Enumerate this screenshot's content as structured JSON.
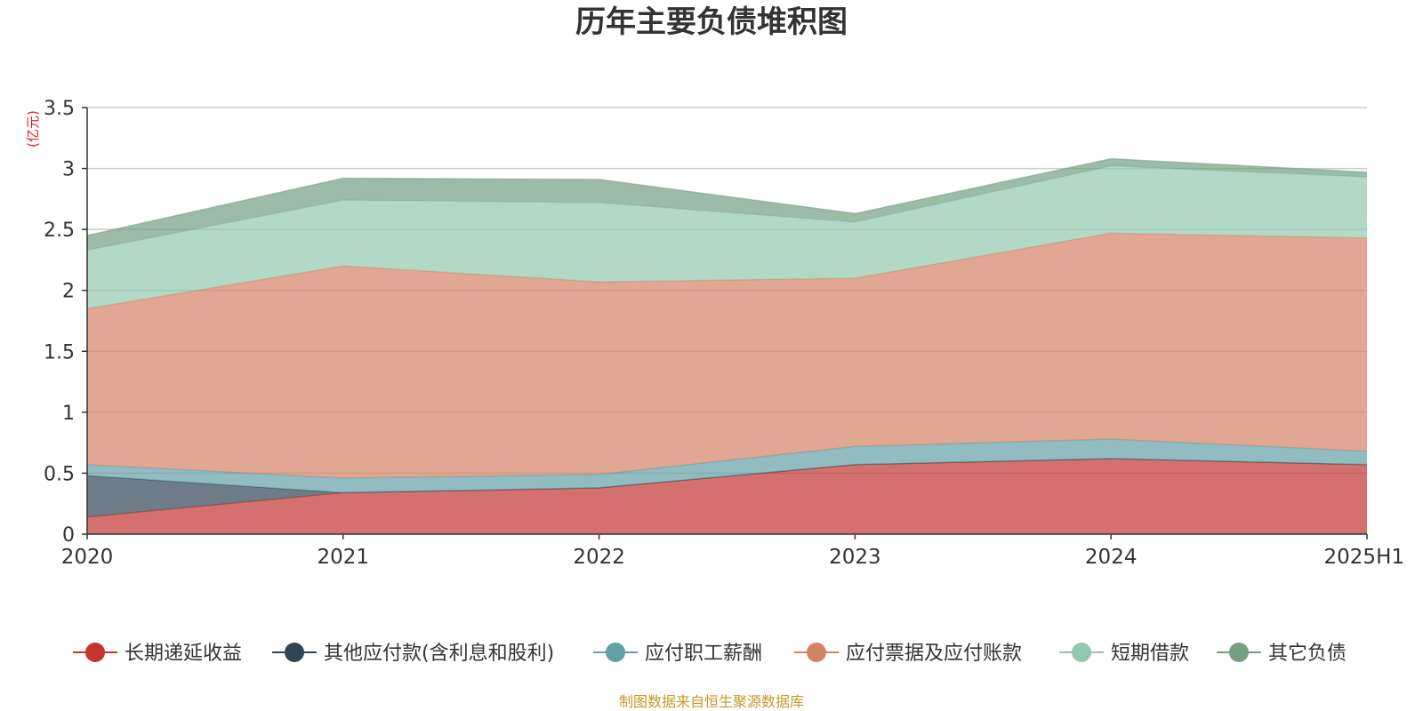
{
  "chart_data": {
    "type": "area",
    "stacked": true,
    "title": "历年主要负债堆积图",
    "y_unit_label": "(亿元)",
    "categories": [
      "2020",
      "2021",
      "2022",
      "2023",
      "2024",
      "2025H1"
    ],
    "ylim": [
      0,
      3.5
    ],
    "yticks": [
      "0",
      "0.5",
      "1",
      "1.5",
      "2",
      "2.5",
      "3",
      "3.5"
    ],
    "grid": true,
    "legend_position": "bottom",
    "series": [
      {
        "name": "长期递延收益",
        "color": "#c23531",
        "values": [
          0.14,
          0.34,
          0.38,
          0.57,
          0.62,
          0.57
        ]
      },
      {
        "name": "其他应付款(含利息和股利)",
        "color": "#2f4554",
        "values": [
          0.34,
          0.0,
          0.0,
          0.0,
          0.0,
          0.0
        ]
      },
      {
        "name": "应付职工薪酬",
        "color": "#61a0a8",
        "values": [
          0.09,
          0.12,
          0.11,
          0.15,
          0.16,
          0.11
        ]
      },
      {
        "name": "应付票据及应付账款",
        "color": "#d48265",
        "values": [
          1.28,
          1.74,
          1.58,
          1.38,
          1.69,
          1.75
        ]
      },
      {
        "name": "短期借款",
        "color": "#91c7ae",
        "values": [
          0.48,
          0.54,
          0.65,
          0.46,
          0.55,
          0.5
        ]
      },
      {
        "name": "其它负债",
        "color": "#749f83",
        "values": [
          0.12,
          0.18,
          0.19,
          0.07,
          0.06,
          0.04
        ]
      }
    ]
  },
  "source_note": "制图数据来自恒生聚源数据库"
}
